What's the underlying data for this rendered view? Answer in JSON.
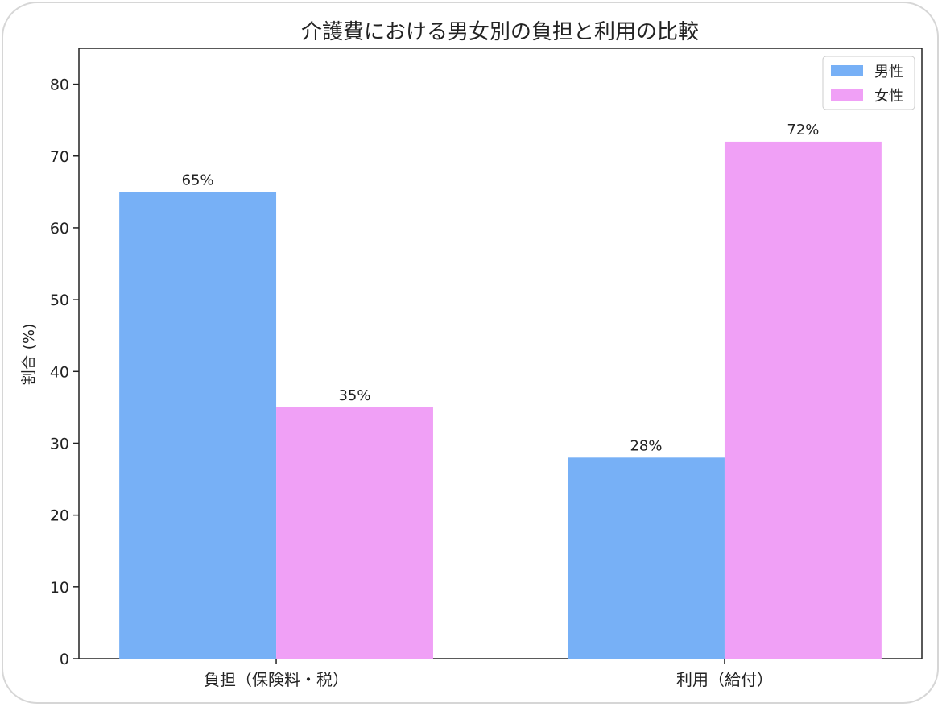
{
  "chart_data": {
    "type": "bar",
    "title": "介護費における男女別の負担と利用の比較",
    "xlabel": "",
    "ylabel": "割合 (%)",
    "categories": [
      "負担（保険料・税）",
      "利用（給付）"
    ],
    "series": [
      {
        "name": "男性",
        "values": [
          65,
          28
        ],
        "color": "#77b0f6",
        "labels": [
          "65%",
          "28%"
        ]
      },
      {
        "name": "女性",
        "values": [
          35,
          72
        ],
        "color": "#f0a0f6",
        "labels": [
          "35%",
          "72%"
        ]
      }
    ],
    "ylim": [
      0,
      85
    ],
    "yticks": [
      0,
      10,
      20,
      30,
      40,
      50,
      60,
      70,
      80
    ],
    "grid": false,
    "legend": "top-right"
  }
}
